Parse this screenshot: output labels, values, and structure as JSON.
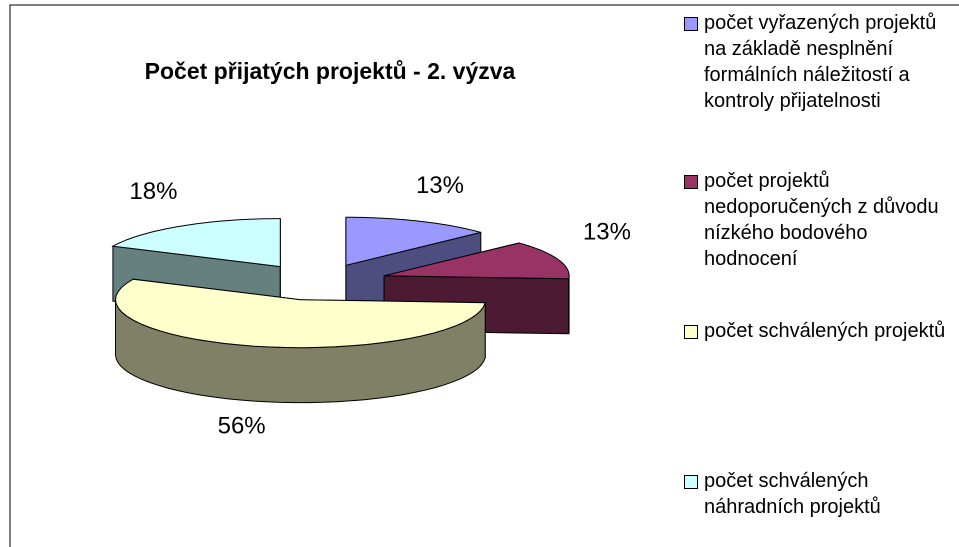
{
  "chart_data": {
    "type": "pie3d",
    "title": "Počet přijatých projektů - 2. výzva",
    "series": [
      {
        "name": "počet vyřazených projektů na základě nesplnění formálních náležitostí a kontroly přijatelnosti",
        "color": "#9999ff",
        "side": "#4d4d80"
      },
      {
        "name": "počet projektů nedoporučených z důvodu nízkého bodového hodnocení",
        "color": "#993366",
        "side": "#4d1a33"
      },
      {
        "name": "počet schválených projektů",
        "color": "#ffffcc",
        "side": "#808066"
      },
      {
        "name": "počet schválených náhradních projektů",
        "color": "#ccffff",
        "side": "#668080"
      }
    ],
    "values": [
      13,
      13,
      56,
      18
    ],
    "value_labels": [
      "13%",
      "13%",
      "56%",
      "18%"
    ]
  }
}
